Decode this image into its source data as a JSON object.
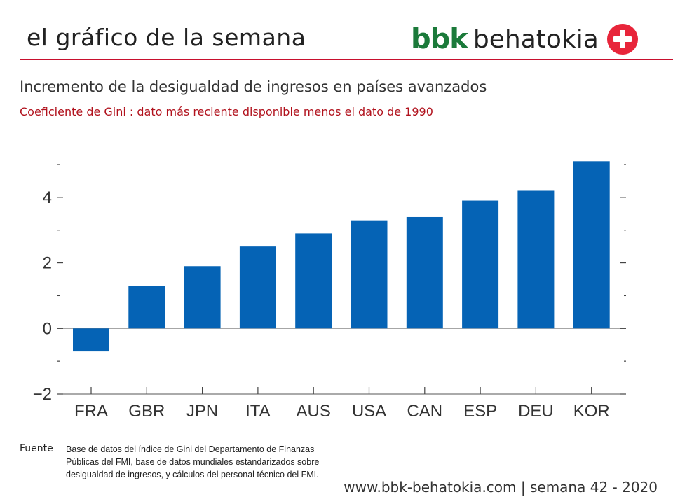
{
  "header": {
    "title": "el gráfico de la semana",
    "brand_prefix": "bbk",
    "brand_name": "behatokia"
  },
  "colors": {
    "bar": "#0563b5",
    "brand_green": "#1b7a3a",
    "accent_red": "#c8102e"
  },
  "chart_data": {
    "type": "bar",
    "title": "Incremento de la desigualdad de ingresos en países avanzados",
    "subtitle": "Coeficiente de Gini : dato más reciente disponible menos el dato de 1990",
    "categories": [
      "FRA",
      "GBR",
      "JPN",
      "ITA",
      "AUS",
      "USA",
      "CAN",
      "ESP",
      "DEU",
      "KOR"
    ],
    "values": [
      -0.7,
      1.3,
      1.9,
      2.5,
      2.9,
      3.3,
      3.4,
      3.9,
      4.2,
      5.1
    ],
    "ylim": [
      -2,
      5
    ],
    "yticks": [
      -2,
      -1,
      0,
      1,
      2,
      3,
      4,
      5
    ],
    "ytick_labels": [
      "−2",
      "",
      "0",
      "",
      "2",
      "",
      "4",
      ""
    ],
    "xlabel": "",
    "ylabel": "",
    "grid": false
  },
  "source": {
    "label": "Fuente",
    "text": "Base de datos del índice de Gini del Departamento de Finanzas Públicas del FMI, base de datos mundiales estandarizados sobre desigualdad de ingresos, y cálculos del personal técnico del FMI."
  },
  "footer": {
    "text": "www.bbk-behatokia.com | semana 42 - 2020"
  }
}
